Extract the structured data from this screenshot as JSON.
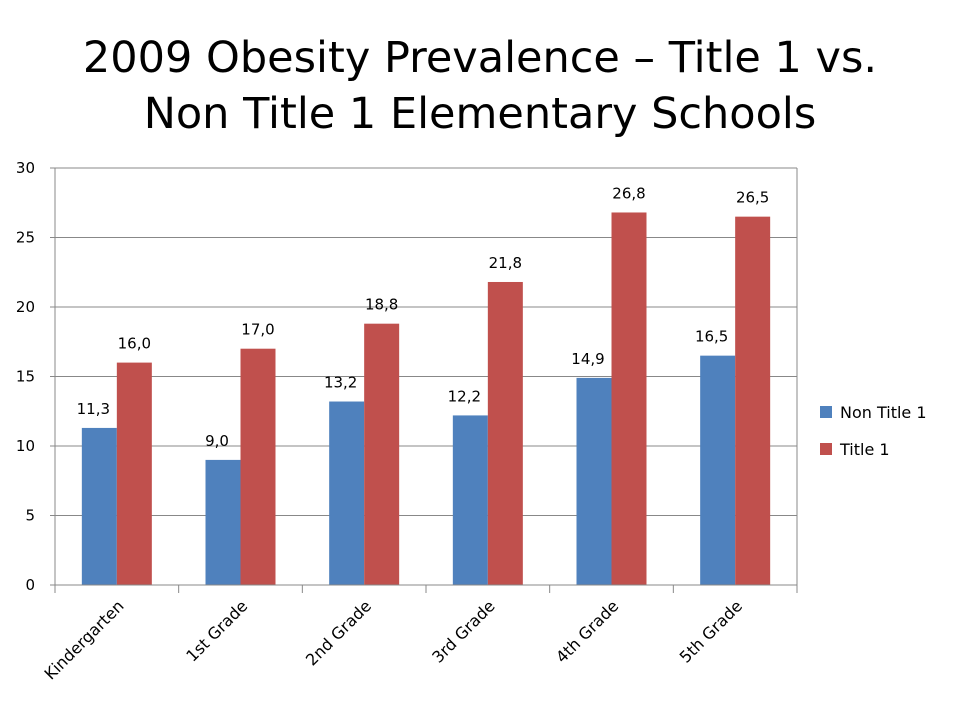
{
  "slide": {
    "title_line1": "2009 Obesity Prevalence – Title 1 vs.",
    "title_line2": "Non Title 1 Elementary Schools"
  },
  "chart_data": {
    "type": "bar",
    "categories": [
      "Kindergarten",
      "1st Grade",
      "2nd Grade",
      "3rd Grade",
      "4th Grade",
      "5th Grade"
    ],
    "series": [
      {
        "name": "Non Title 1",
        "values": [
          11.3,
          9.0,
          13.2,
          12.2,
          14.9,
          16.5
        ],
        "labels": [
          "11,3",
          "9,0",
          "13,2",
          "12,2",
          "14,9",
          "16,5"
        ],
        "color": "#4F81BD"
      },
      {
        "name": "Title 1",
        "values": [
          16.0,
          17.0,
          18.8,
          21.8,
          26.8,
          26.5
        ],
        "labels": [
          "16,0",
          "17,0",
          "18,8",
          "21,8",
          "26,8",
          "26,5"
        ],
        "color": "#C0504D"
      }
    ],
    "ylim": [
      0,
      30
    ],
    "yticks": [
      "0",
      "5",
      "10",
      "15",
      "20",
      "25",
      "30"
    ],
    "grid": true,
    "legend_position": "right",
    "gridline_color": "#888888"
  }
}
